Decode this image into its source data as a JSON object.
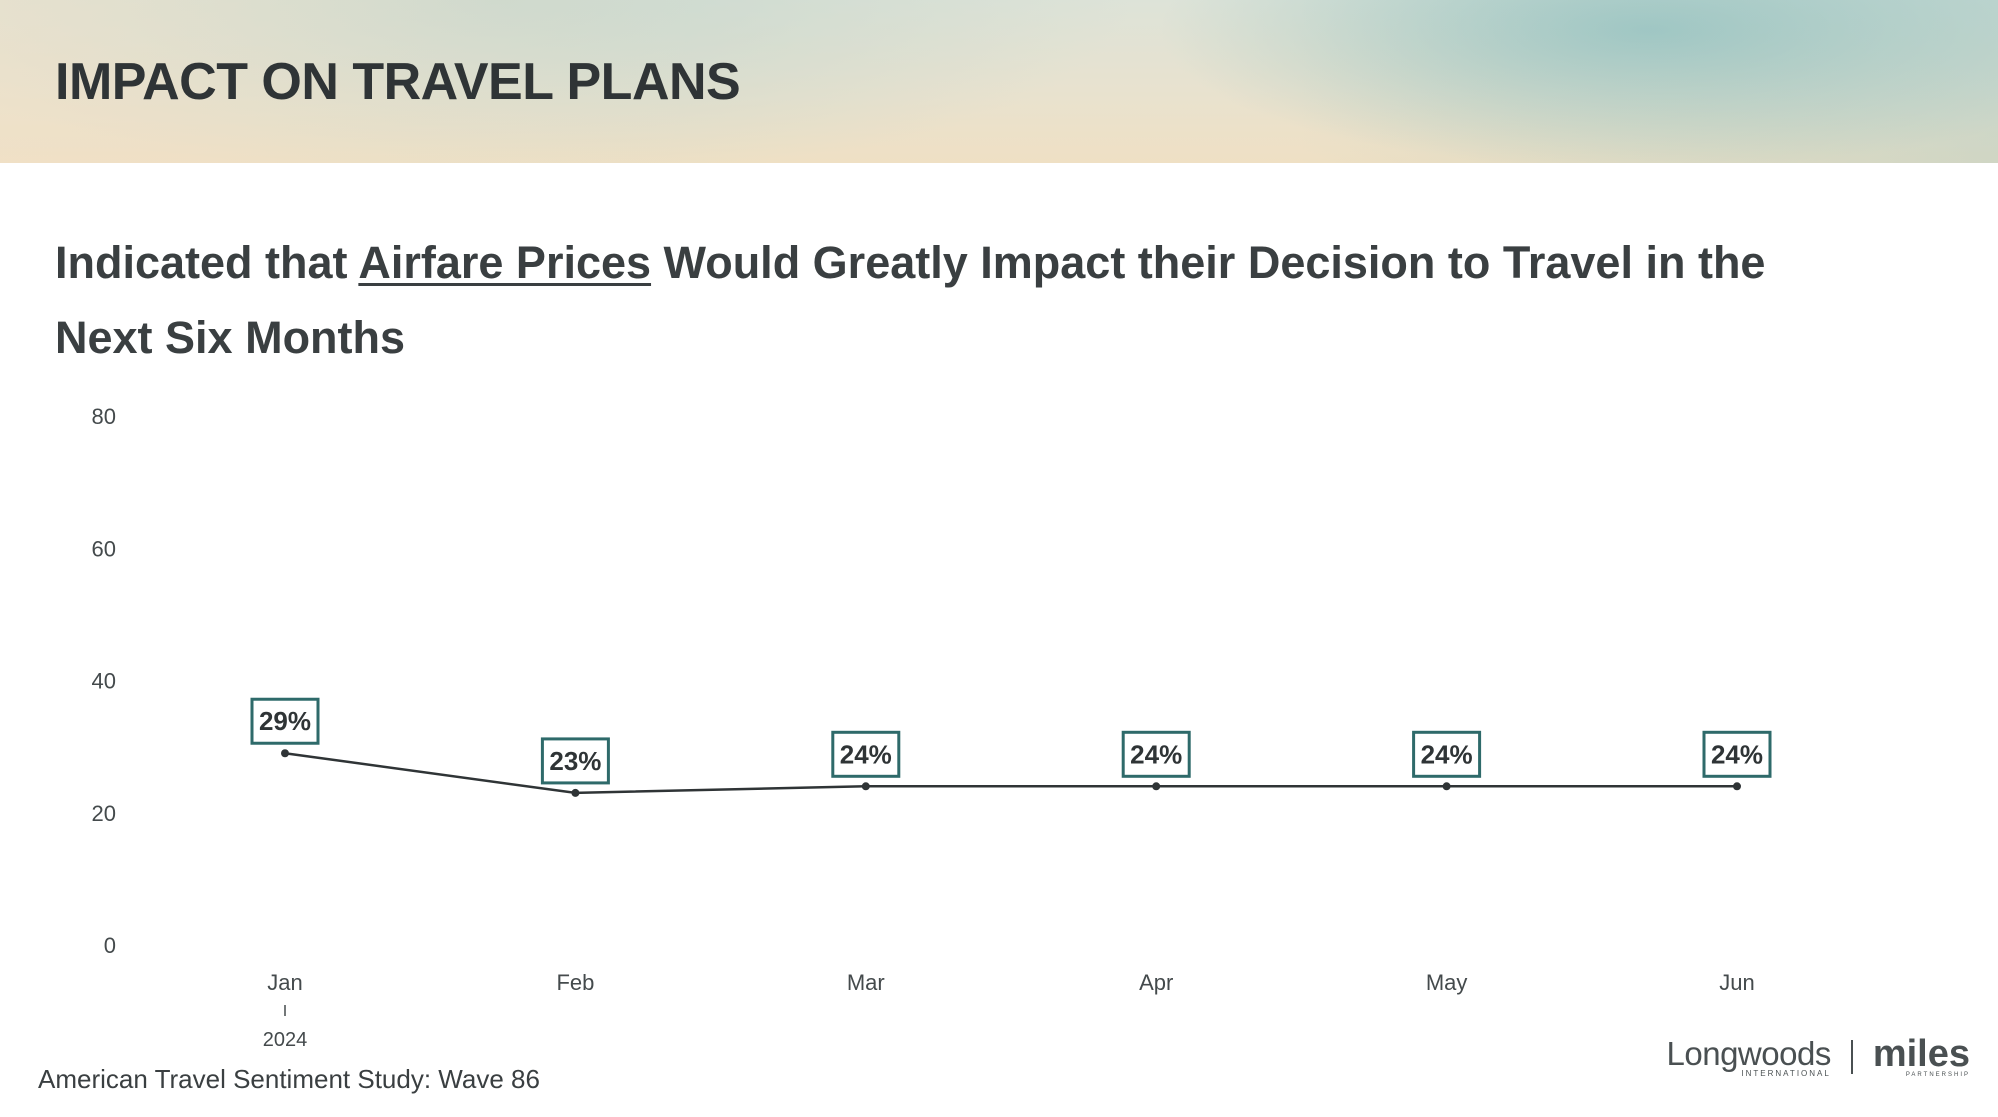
{
  "header": {
    "title": "IMPACT ON TRAVEL PLANS"
  },
  "subtitle": {
    "before": "Indicated that ",
    "emphasis": "Airfare Prices",
    "after": " Would Greatly Impact their Decision to Travel in the Next Six Months"
  },
  "chart_data": {
    "type": "line",
    "categories": [
      "Jan",
      "Feb",
      "Mar",
      "Apr",
      "May",
      "Jun"
    ],
    "x_year_label": "2024",
    "series": [
      {
        "values": [
          29,
          23,
          24,
          24,
          24,
          24
        ],
        "labels": [
          "29%",
          "23%",
          "24%",
          "24%",
          "24%",
          "24%"
        ]
      }
    ],
    "ylim": [
      0,
      80
    ],
    "yticks": [
      0,
      20,
      40,
      60,
      80
    ],
    "grid": false,
    "legend": "none",
    "line_color": "#2f3436",
    "label_border_color": "#2e6a6a"
  },
  "footer": {
    "source": "American Travel Sentiment Study: Wave 86",
    "logo_longwoods": "Longwoods",
    "logo_longwoods_sub": "INTERNATIONAL",
    "logo_miles": "miles",
    "logo_miles_sub": "PARTNERSHIP"
  }
}
